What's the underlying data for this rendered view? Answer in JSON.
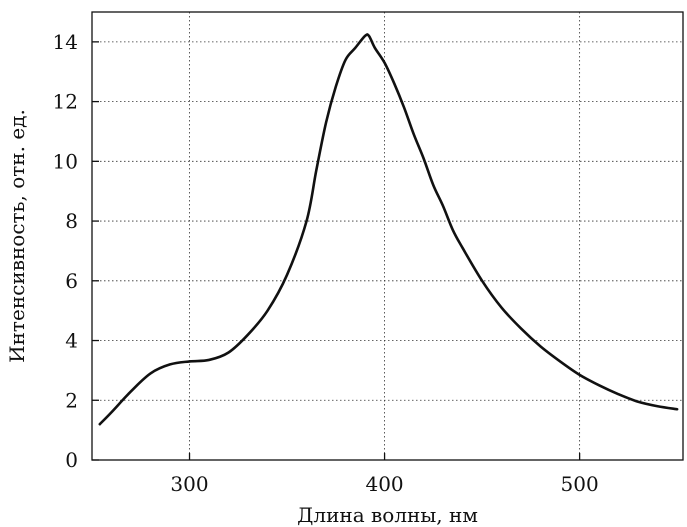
{
  "chart_data": {
    "type": "line",
    "title": "",
    "xlabel": "Длина волны, нм",
    "ylabel": "Интенсивность, отн. ед.",
    "xlim": [
      250,
      553
    ],
    "ylim": [
      0,
      15
    ],
    "xticks": [
      300,
      400,
      500
    ],
    "yticks": [
      0,
      2,
      4,
      6,
      8,
      10,
      12,
      14
    ],
    "grid": true,
    "legend": "none",
    "series": [
      {
        "color": "#111111",
        "x": [
          254,
          260,
          270,
          280,
          290,
          300,
          310,
          320,
          330,
          340,
          350,
          360,
          365,
          370,
          375,
          380,
          385,
          390,
          392,
          395,
          400,
          405,
          410,
          415,
          420,
          425,
          430,
          435,
          440,
          450,
          460,
          470,
          480,
          490,
          500,
          510,
          520,
          530,
          540,
          550
        ],
        "y": [
          1.2,
          1.6,
          2.3,
          2.9,
          3.2,
          3.3,
          3.35,
          3.6,
          4.2,
          5.0,
          6.2,
          8.0,
          9.7,
          11.3,
          12.5,
          13.4,
          13.8,
          14.2,
          14.2,
          13.8,
          13.3,
          12.6,
          11.8,
          10.9,
          10.1,
          9.2,
          8.5,
          7.7,
          7.1,
          6.0,
          5.1,
          4.4,
          3.8,
          3.3,
          2.85,
          2.5,
          2.2,
          1.95,
          1.8,
          1.7
        ]
      }
    ]
  }
}
